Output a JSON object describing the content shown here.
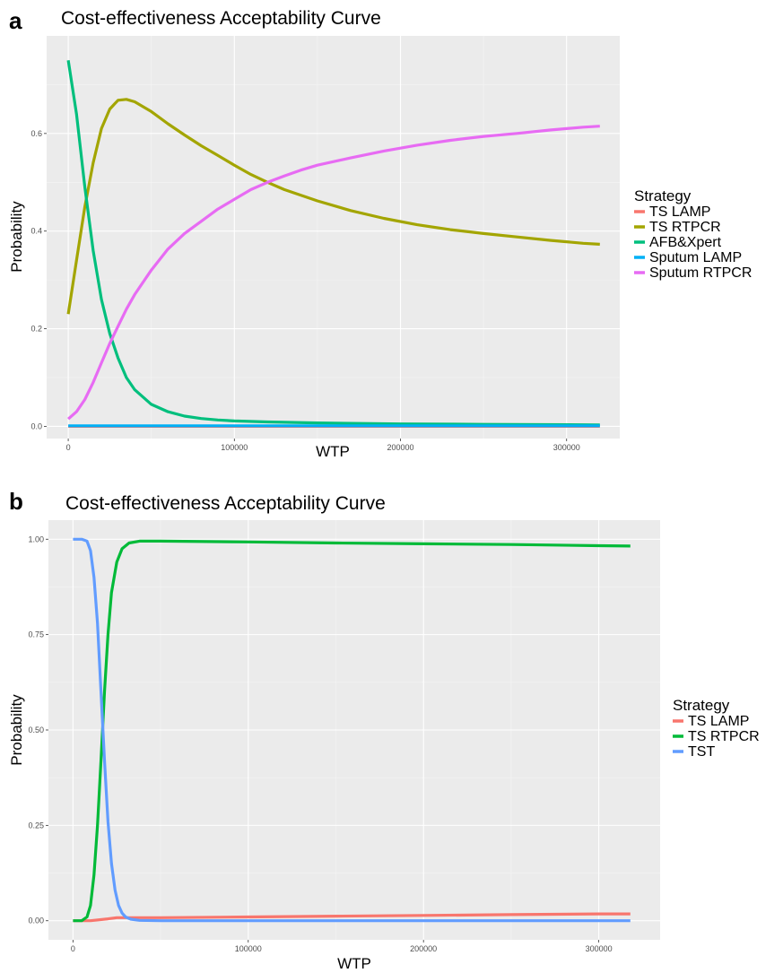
{
  "chart_data": [
    {
      "type": "line",
      "panel_label": "a",
      "title": "Cost-effectiveness Acceptability Curve",
      "xlabel": "WTP",
      "ylabel": "Probability",
      "xlim": [
        -13000,
        332000
      ],
      "ylim": [
        -0.025,
        0.8
      ],
      "x_ticks": [
        0,
        100000,
        200000,
        300000
      ],
      "x_tick_labels": [
        "0",
        "100000",
        "200000",
        "300000"
      ],
      "y_ticks": [
        0,
        0.2,
        0.4,
        0.6
      ],
      "y_tick_labels": [
        "0.0",
        "0.2",
        "0.4",
        "0.6"
      ],
      "grid": true,
      "legend_title": "Strategy",
      "legend_position": "right",
      "series": [
        {
          "name": "TS LAMP",
          "color": "#F8766D",
          "x": [
            0,
            50000,
            100000,
            150000,
            200000,
            250000,
            320000
          ],
          "y": [
            0,
            0,
            0,
            0,
            0,
            0,
            0
          ]
        },
        {
          "name": "TS RTPCR",
          "color": "#A3A500",
          "x": [
            0,
            5000,
            10000,
            15000,
            20000,
            25000,
            30000,
            35000,
            40000,
            50000,
            60000,
            70000,
            80000,
            90000,
            100000,
            110000,
            120000,
            130000,
            150000,
            170000,
            190000,
            210000,
            230000,
            250000,
            270000,
            290000,
            310000,
            320000
          ],
          "y": [
            0.23,
            0.34,
            0.45,
            0.54,
            0.61,
            0.65,
            0.668,
            0.67,
            0.665,
            0.645,
            0.62,
            0.597,
            0.575,
            0.555,
            0.535,
            0.516,
            0.5,
            0.485,
            0.462,
            0.442,
            0.426,
            0.413,
            0.403,
            0.395,
            0.388,
            0.381,
            0.375,
            0.373
          ]
        },
        {
          "name": "AFB&Xpert",
          "color": "#00BF7D",
          "x": [
            0,
            5000,
            10000,
            15000,
            20000,
            25000,
            30000,
            35000,
            40000,
            50000,
            60000,
            70000,
            80000,
            90000,
            100000,
            120000,
            150000,
            200000,
            250000,
            320000
          ],
          "y": [
            0.75,
            0.64,
            0.49,
            0.36,
            0.26,
            0.19,
            0.14,
            0.1,
            0.075,
            0.045,
            0.03,
            0.021,
            0.016,
            0.013,
            0.011,
            0.009,
            0.007,
            0.005,
            0.004,
            0.003
          ]
        },
        {
          "name": "Sputum LAMP",
          "color": "#00B0F6",
          "x": [
            0,
            50000,
            100000,
            150000,
            200000,
            250000,
            320000
          ],
          "y": [
            0.001,
            0.001,
            0.001,
            0.001,
            0.001,
            0.001,
            0.001
          ]
        },
        {
          "name": "Sputum RTPCR",
          "color": "#E76BF3",
          "x": [
            0,
            5000,
            10000,
            15000,
            20000,
            25000,
            30000,
            35000,
            40000,
            50000,
            60000,
            70000,
            80000,
            90000,
            100000,
            110000,
            120000,
            130000,
            140000,
            150000,
            170000,
            190000,
            210000,
            230000,
            250000,
            270000,
            290000,
            310000,
            320000
          ],
          "y": [
            0.015,
            0.03,
            0.055,
            0.09,
            0.13,
            0.17,
            0.205,
            0.24,
            0.27,
            0.32,
            0.363,
            0.395,
            0.42,
            0.445,
            0.465,
            0.485,
            0.5,
            0.513,
            0.525,
            0.535,
            0.55,
            0.564,
            0.576,
            0.586,
            0.594,
            0.6,
            0.607,
            0.613,
            0.615
          ]
        }
      ]
    },
    {
      "type": "line",
      "panel_label": "b",
      "title": "Cost-effectiveness Acceptability Curve",
      "xlabel": "WTP",
      "ylabel": "Probability",
      "xlim": [
        -14000,
        335000
      ],
      "ylim": [
        -0.05,
        1.05
      ],
      "x_ticks": [
        0,
        100000,
        200000,
        300000
      ],
      "x_tick_labels": [
        "0",
        "100000",
        "200000",
        "300000"
      ],
      "y_ticks": [
        0,
        0.25,
        0.5,
        0.75,
        1.0
      ],
      "y_tick_labels": [
        "0.00",
        "0.25",
        "0.50",
        "0.75",
        "1.00"
      ],
      "grid": true,
      "legend_title": "Strategy",
      "legend_position": "right",
      "series": [
        {
          "name": "TS LAMP",
          "color": "#F8766D",
          "x": [
            0,
            10000,
            20000,
            25000,
            50000,
            100000,
            150000,
            200000,
            250000,
            300000,
            318000
          ],
          "y": [
            0,
            0,
            0.005,
            0.008,
            0.008,
            0.01,
            0.012,
            0.014,
            0.016,
            0.018,
            0.018
          ]
        },
        {
          "name": "TS RTPCR",
          "color": "#00BA38",
          "x": [
            0,
            5000,
            8000,
            10000,
            12000,
            14000,
            16000,
            18000,
            20000,
            22000,
            25000,
            28000,
            32000,
            38000,
            50000,
            100000,
            150000,
            200000,
            250000,
            300000,
            318000
          ],
          "y": [
            0,
            0,
            0.01,
            0.04,
            0.12,
            0.25,
            0.42,
            0.6,
            0.75,
            0.86,
            0.94,
            0.975,
            0.99,
            0.995,
            0.995,
            0.993,
            0.99,
            0.988,
            0.986,
            0.983,
            0.982
          ]
        },
        {
          "name": "TST",
          "color": "#619CFF",
          "x": [
            0,
            5000,
            8000,
            10000,
            12000,
            14000,
            16000,
            18000,
            20000,
            22000,
            24000,
            26000,
            28000,
            30000,
            33000,
            38000,
            50000,
            100000,
            200000,
            318000
          ],
          "y": [
            1,
            1,
            0.995,
            0.97,
            0.9,
            0.78,
            0.6,
            0.42,
            0.26,
            0.15,
            0.08,
            0.04,
            0.02,
            0.01,
            0.004,
            0.001,
            0,
            0,
            0,
            0
          ]
        }
      ]
    }
  ]
}
